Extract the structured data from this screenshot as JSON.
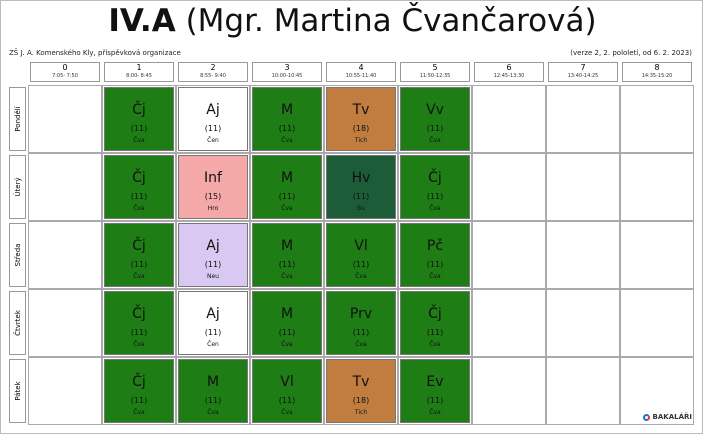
{
  "header": {
    "class": "IV.A",
    "teacher": "(Mgr. Martina Čvančarová)",
    "school": "ZŠ J. A. Komenského Kly, příspěvková organizace",
    "version": "(verze 2, 2. pololetí, od 6. 2. 2023)"
  },
  "periods": [
    {
      "number": "0",
      "time": "7:05- 7:50"
    },
    {
      "number": "1",
      "time": "8:00- 8:45"
    },
    {
      "number": "2",
      "time": "8:55- 9:40"
    },
    {
      "number": "3",
      "time": "10:00-10:45"
    },
    {
      "number": "4",
      "time": "10:55-11:40"
    },
    {
      "number": "5",
      "time": "11:50-12:35"
    },
    {
      "number": "6",
      "time": "12:45-13:30"
    },
    {
      "number": "7",
      "time": "13:40-14:25"
    },
    {
      "number": "8",
      "time": "14:35-15:20"
    }
  ],
  "days": [
    "Pondělí",
    "Úterý",
    "Středa",
    "Čtvrtek",
    "Pátek"
  ],
  "timetable": [
    [
      {
        "subject": "Čj",
        "room": "(11)",
        "teacher": "Čva",
        "color": "#1e7d14"
      },
      {
        "subject": "Aj",
        "room": "(11)",
        "teacher": "Čen",
        "color": "#ffffff"
      },
      {
        "subject": "M",
        "room": "(11)",
        "teacher": "Čva",
        "color": "#1e7d14"
      },
      {
        "subject": "Tv",
        "room": "(18)",
        "teacher": "Tich",
        "color": "#c17d3f"
      },
      {
        "subject": "Vv",
        "room": "(11)",
        "teacher": "Čva",
        "color": "#1e7d14"
      }
    ],
    [
      {
        "subject": "Čj",
        "room": "(11)",
        "teacher": "Čva",
        "color": "#1e7d14"
      },
      {
        "subject": "Inf",
        "room": "(15)",
        "teacher": "Hro",
        "color": "#f5a8a8"
      },
      {
        "subject": "M",
        "room": "(11)",
        "teacher": "Čva",
        "color": "#1e7d14"
      },
      {
        "subject": "Hv",
        "room": "(11)",
        "teacher": "Bu",
        "color": "#1d5c38"
      },
      {
        "subject": "Čj",
        "room": "(11)",
        "teacher": "Čva",
        "color": "#1e7d14"
      }
    ],
    [
      {
        "subject": "Čj",
        "room": "(11)",
        "teacher": "Čva",
        "color": "#1e7d14"
      },
      {
        "subject": "Aj",
        "room": "(11)",
        "teacher": "Neu",
        "color": "#d8c8f2"
      },
      {
        "subject": "M",
        "room": "(11)",
        "teacher": "Čva",
        "color": "#1e7d14"
      },
      {
        "subject": "Vl",
        "room": "(11)",
        "teacher": "Čva",
        "color": "#1e7d14"
      },
      {
        "subject": "Pč",
        "room": "(11)",
        "teacher": "Čva",
        "color": "#1e7d14"
      }
    ],
    [
      {
        "subject": "Čj",
        "room": "(11)",
        "teacher": "Čva",
        "color": "#1e7d14"
      },
      {
        "subject": "Aj",
        "room": "(11)",
        "teacher": "Čen",
        "color": "#ffffff"
      },
      {
        "subject": "M",
        "room": "(11)",
        "teacher": "Čva",
        "color": "#1e7d14"
      },
      {
        "subject": "Prv",
        "room": "(11)",
        "teacher": "Čva",
        "color": "#1e7d14"
      },
      {
        "subject": "Čj",
        "room": "(11)",
        "teacher": "Čva",
        "color": "#1e7d14"
      }
    ],
    [
      {
        "subject": "Čj",
        "room": "(11)",
        "teacher": "Čva",
        "color": "#1e7d14"
      },
      {
        "subject": "M",
        "room": "(11)",
        "teacher": "Čva",
        "color": "#1e7d14"
      },
      {
        "subject": "Vl",
        "room": "(11)",
        "teacher": "Čva",
        "color": "#1e7d14"
      },
      {
        "subject": "Tv",
        "room": "(18)",
        "teacher": "Tich",
        "color": "#c17d3f"
      },
      {
        "subject": "Ev",
        "room": "(11)",
        "teacher": "Čva",
        "color": "#1e7d14"
      }
    ]
  ],
  "logo": "BAKALÁŘI"
}
